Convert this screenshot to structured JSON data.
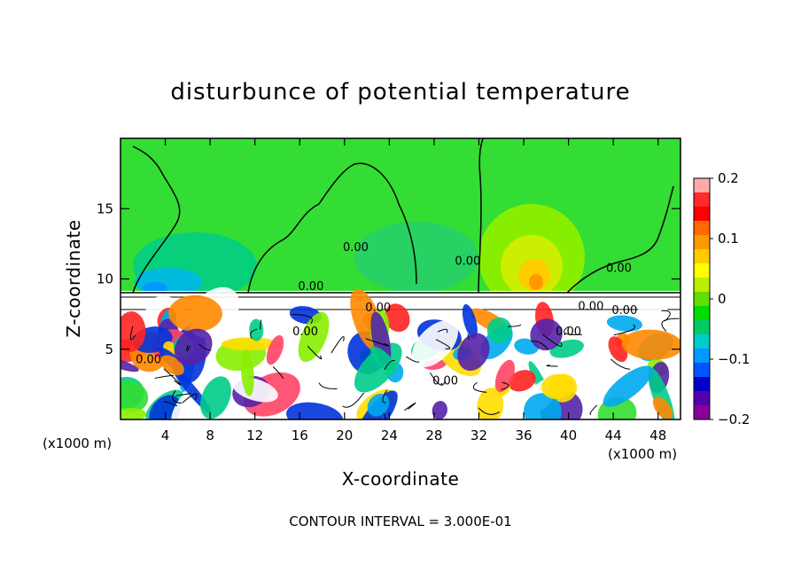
{
  "chart_data": {
    "type": "heatmap",
    "title": "disturbunce of potential temperature",
    "xlabel": "X-coordinate",
    "ylabel": "Z-coordinate",
    "x_unit": "(x1000 m)",
    "y_unit": "(x1000 m)",
    "x_ticks": [
      4,
      8,
      12,
      16,
      20,
      24,
      28,
      32,
      36,
      40,
      44,
      48
    ],
    "y_ticks": [
      5,
      10,
      15
    ],
    "xlim": [
      0,
      50
    ],
    "ylim": [
      0,
      20
    ],
    "colorbar": {
      "ticks": [
        0.2,
        0.1,
        0,
        -0.1,
        -0.2
      ],
      "range": [
        -0.2,
        0.2
      ],
      "colors": [
        "#ffaaaa",
        "#ff2a2a",
        "#ff0000",
        "#ff6a00",
        "#ff9900",
        "#ffcc00",
        "#ffff00",
        "#bbee00",
        "#66dd00",
        "#00dd00",
        "#00cc66",
        "#00cccc",
        "#0099ff",
        "#0055ff",
        "#0000cc",
        "#5500aa",
        "#880099"
      ]
    },
    "contour_labels": [
      {
        "text": "0.00",
        "x": 17.0,
        "y": 9.2
      },
      {
        "text": "0.00",
        "x": 21.0,
        "y": 12.0
      },
      {
        "text": "0.00",
        "x": 31.0,
        "y": 11.0
      },
      {
        "text": "0.00",
        "x": 44.5,
        "y": 10.5
      },
      {
        "text": "0.00",
        "x": 23.0,
        "y": 7.7
      },
      {
        "text": "0.00",
        "x": 42.0,
        "y": 7.8
      },
      {
        "text": "0.00",
        "x": 45.0,
        "y": 7.5
      },
      {
        "text": "0.00",
        "x": 16.5,
        "y": 6.0
      },
      {
        "text": "0.00",
        "x": 40.0,
        "y": 6.0
      },
      {
        "text": "0.00",
        "x": 2.5,
        "y": 4.0
      },
      {
        "text": "0.00",
        "x": 29.0,
        "y": 2.5
      }
    ],
    "footer": "CONTOUR INTERVAL = 3.000E-01"
  }
}
